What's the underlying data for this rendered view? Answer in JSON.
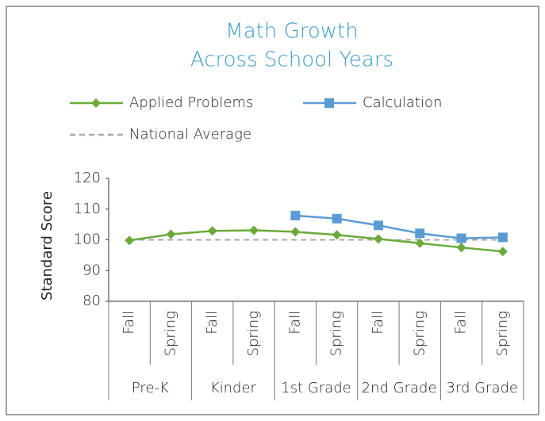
{
  "chart_data": {
    "type": "line",
    "title_lines": [
      "Math Growth",
      "Across School Years"
    ],
    "y_label": "Standard Score",
    "categories": [
      "Fall",
      "Spring",
      "Fall",
      "Spring",
      "Fall",
      "Spring",
      "Fall",
      "Spring",
      "Fall",
      "Spring"
    ],
    "category_groups": [
      "Pre-K",
      "Kinder",
      "1st Grade",
      "2nd Grade",
      "3rd Grade"
    ],
    "series": [
      {
        "name": "Applied Problems",
        "color": "#6aaa3a",
        "marker": "diamond",
        "values": [
          99.8,
          101.8,
          102.9,
          103.1,
          102.6,
          101.6,
          100.3,
          98.9,
          97.5,
          96.2
        ]
      },
      {
        "name": "Calculation",
        "color": "#5b9bd5",
        "marker": "square",
        "values": [
          null,
          null,
          null,
          null,
          107.9,
          106.9,
          104.7,
          102.1,
          100.5,
          100.8
        ]
      },
      {
        "name": "National Average",
        "color": "#aaaaaa",
        "dashed": true,
        "values": [
          100,
          100,
          100,
          100,
          100,
          100,
          100,
          100,
          100,
          100
        ]
      }
    ],
    "ylim": [
      80,
      120
    ],
    "yticks": [
      80,
      90,
      100,
      110,
      120
    ],
    "grid": false
  }
}
